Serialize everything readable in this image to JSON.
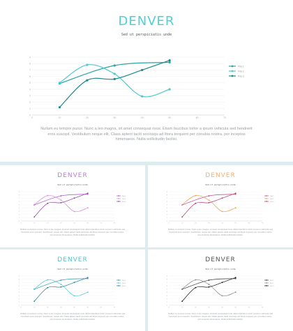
{
  "slides": [
    {
      "title": "DENVER",
      "subtitle": "Sed ut perspiciatis unde",
      "body": "Nullam eu tempor purus. Nunc a leo magna, sit amet consequat risus. Etiam faucibus tortor a ipsum vehicula sed hendrerit eros suscipit. Vestibulum neque elit, Class aptent taciti sociosqu ad litora torquent per conubia nostra, per inceptos himenaeos. Nulla sollicitudin facilisi.",
      "title_color": "#4dd0d8",
      "colors": [
        "#2aa5a5",
        "#4fc8d2",
        "#1e8a8a"
      ]
    },
    {
      "title": "DENVER",
      "subtitle": "Sed ut perspiciatis unde",
      "body": "Nullam eu tempor purus. Nunc a leo magna, sit amet consequat risus. Etiam faucibus tortor a ipsum vehicula sed hendrerit eros suscipit. Vestibulum neque elit, Class aptent taciti sociosqu ad litora torquent per conubia nostra, per inceptos himenaeos. Nulla sollicitudin facilisi.",
      "title_color": "#b77fd4",
      "colors": [
        "#b048c8",
        "#d48ad8",
        "#8a3aa0"
      ]
    },
    {
      "title": "DENVER",
      "subtitle": "Sed ut perspiciatis unde",
      "body": "Nullam eu tempor purus. Nunc a leo magna, sit amet consequat risus. Etiam faucibus tortor a ipsum vehicula sed hendrerit eros suscipit. Vestibulum neque elit, Class aptent taciti sociosqu ad litora torquent per conubia nostra, per inceptos himenaeos. Nulla sollicitudin facilisi.",
      "title_color": "#f0b070",
      "colors": [
        "#c83c8a",
        "#e8a040",
        "#b8306c"
      ]
    },
    {
      "title": "DENVER",
      "subtitle": "Sed ut perspiciatis unde",
      "body": "Nullam eu tempor purus. Nunc a leo magna, sit amet consequat risus. Etiam faucibus tortor a ipsum vehicula sed hendrerit eros suscipit. Vestibulum neque elit, Class aptent taciti sociosqu ad litora torquent per conubia nostra, per inceptos himenaeos. Nulla sollicitudin facilisi.",
      "title_color": "#4fc3d3",
      "colors": [
        "#2a9ab0",
        "#4fc8d8",
        "#1f7f94"
      ]
    },
    {
      "title": "DENVER",
      "subtitle": "Sed ut perspiciatis unde",
      "body": "Nullam eu tempor purus. Nunc a leo magna, sit amet consequat risus. Etiam faucibus tortor a ipsum vehicula sed hendrerit eros suscipit. Vestibulum neque elit, Class aptent taciti sociosqu ad litora torquent per conubia nostra, per inceptos himenaeos. Nulla sollicitudin facilisi.",
      "title_color": "#555555",
      "colors": [
        "#333333",
        "#888888",
        "#111111"
      ]
    }
  ],
  "chart_data": {
    "type": "line",
    "x": [
      0,
      10,
      20,
      30,
      40,
      50,
      60,
      70
    ],
    "yticks": [
      0,
      1,
      2,
      3,
      4,
      5,
      6,
      7,
      8,
      9
    ],
    "xlim": [
      0,
      70
    ],
    "ylim": [
      0,
      9
    ],
    "grid": true,
    "legend_position": "right",
    "series": [
      {
        "name": "Fila 1",
        "x": [
          10,
          30,
          50
        ],
        "values": [
          4.9,
          7.7,
          8.2
        ]
      },
      {
        "name": "Fila 2",
        "x": [
          10,
          20,
          30,
          40,
          50
        ],
        "values": [
          5.0,
          7.8,
          6.4,
          2.9,
          4.0
        ]
      },
      {
        "name": "Fila 3",
        "x": [
          10,
          20,
          30,
          40,
          50
        ],
        "values": [
          1.2,
          5.4,
          5.6,
          7.0,
          8.5
        ]
      }
    ]
  }
}
